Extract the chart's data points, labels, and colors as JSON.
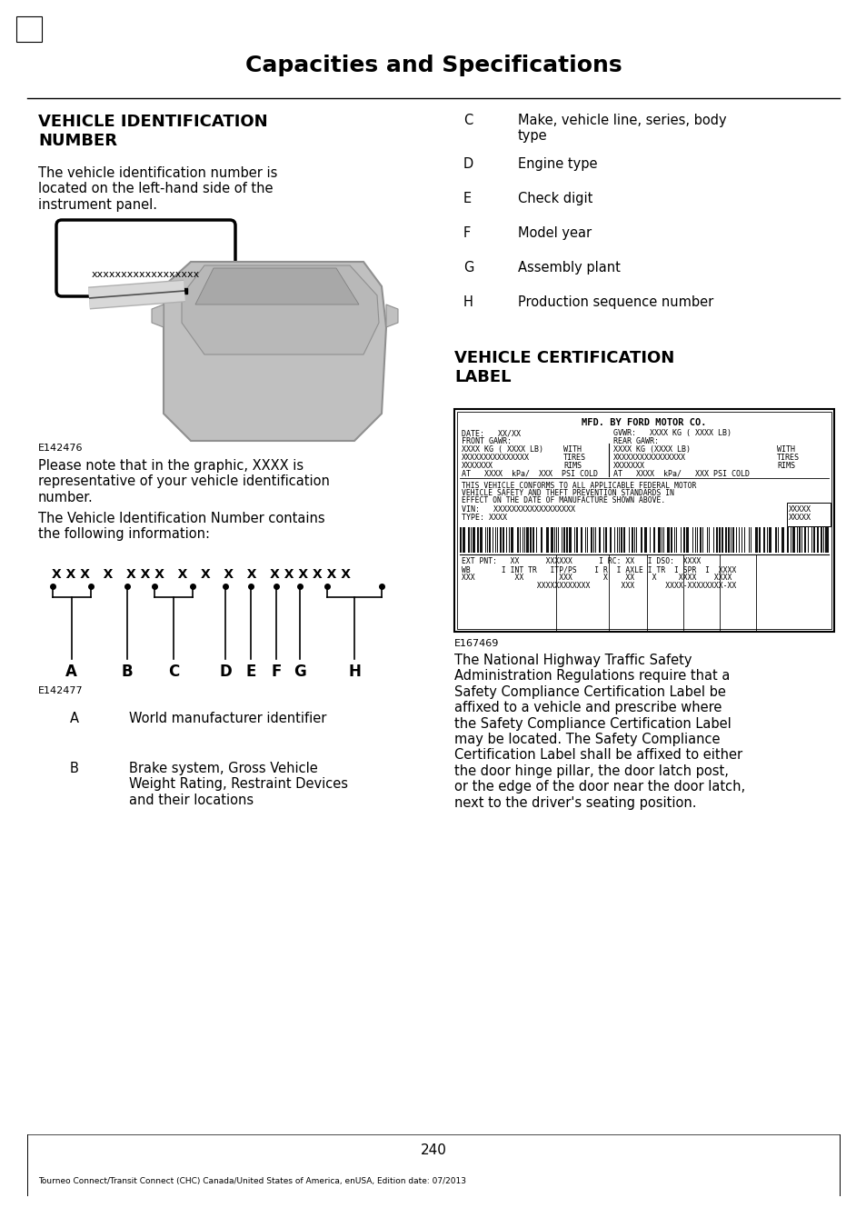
{
  "page_title": "Capacities and Specifications",
  "page_number": "240",
  "footer_text": "Tourneo Connect/Transit Connect (CHC) Canada/United States of America, enUSA, Edition date: 07/2013",
  "section1_title": "VEHICLE IDENTIFICATION\nNUMBER",
  "section1_body1": "The vehicle identification number is\nlocated on the left-hand side of the\ninstrument panel.",
  "vin_label": "xxxxxxxxxxxxxxxxxx",
  "fig1_label": "E142476",
  "section1_body2": "Please note that in the graphic, XXXX is\nrepresentative of your vehicle identification\nnumber.",
  "section1_body3": "The Vehicle Identification Number contains\nthe following information:",
  "fig2_label": "E142477",
  "vin_items": [
    [
      "A",
      "World manufacturer identifier"
    ],
    [
      "B",
      "Brake system, Gross Vehicle\nWeight Rating, Restraint Devices\nand their locations"
    ]
  ],
  "right_items": [
    [
      "C",
      "Make, vehicle line, series, body\ntype"
    ],
    [
      "D",
      "Engine type"
    ],
    [
      "E",
      "Check digit"
    ],
    [
      "F",
      "Model year"
    ],
    [
      "G",
      "Assembly plant"
    ],
    [
      "H",
      "Production sequence number"
    ]
  ],
  "section2_title": "VEHICLE CERTIFICATION\nLABEL",
  "fig3_label": "E167469",
  "section2_body": "The National Highway Traffic Safety\nAdministration Regulations require that a\nSafety Compliance Certification Label be\naffixed to a vehicle and prescribe where\nthe Safety Compliance Certification Label\nmay be located. The Safety Compliance\nCertification Label shall be affixed to either\nthe door hinge pillar, the door latch post,\nor the edge of the door near the door latch,\nnext to the driver's seating position.",
  "bg_color": "#ffffff",
  "text_color": "#000000",
  "title_color": "#000000"
}
